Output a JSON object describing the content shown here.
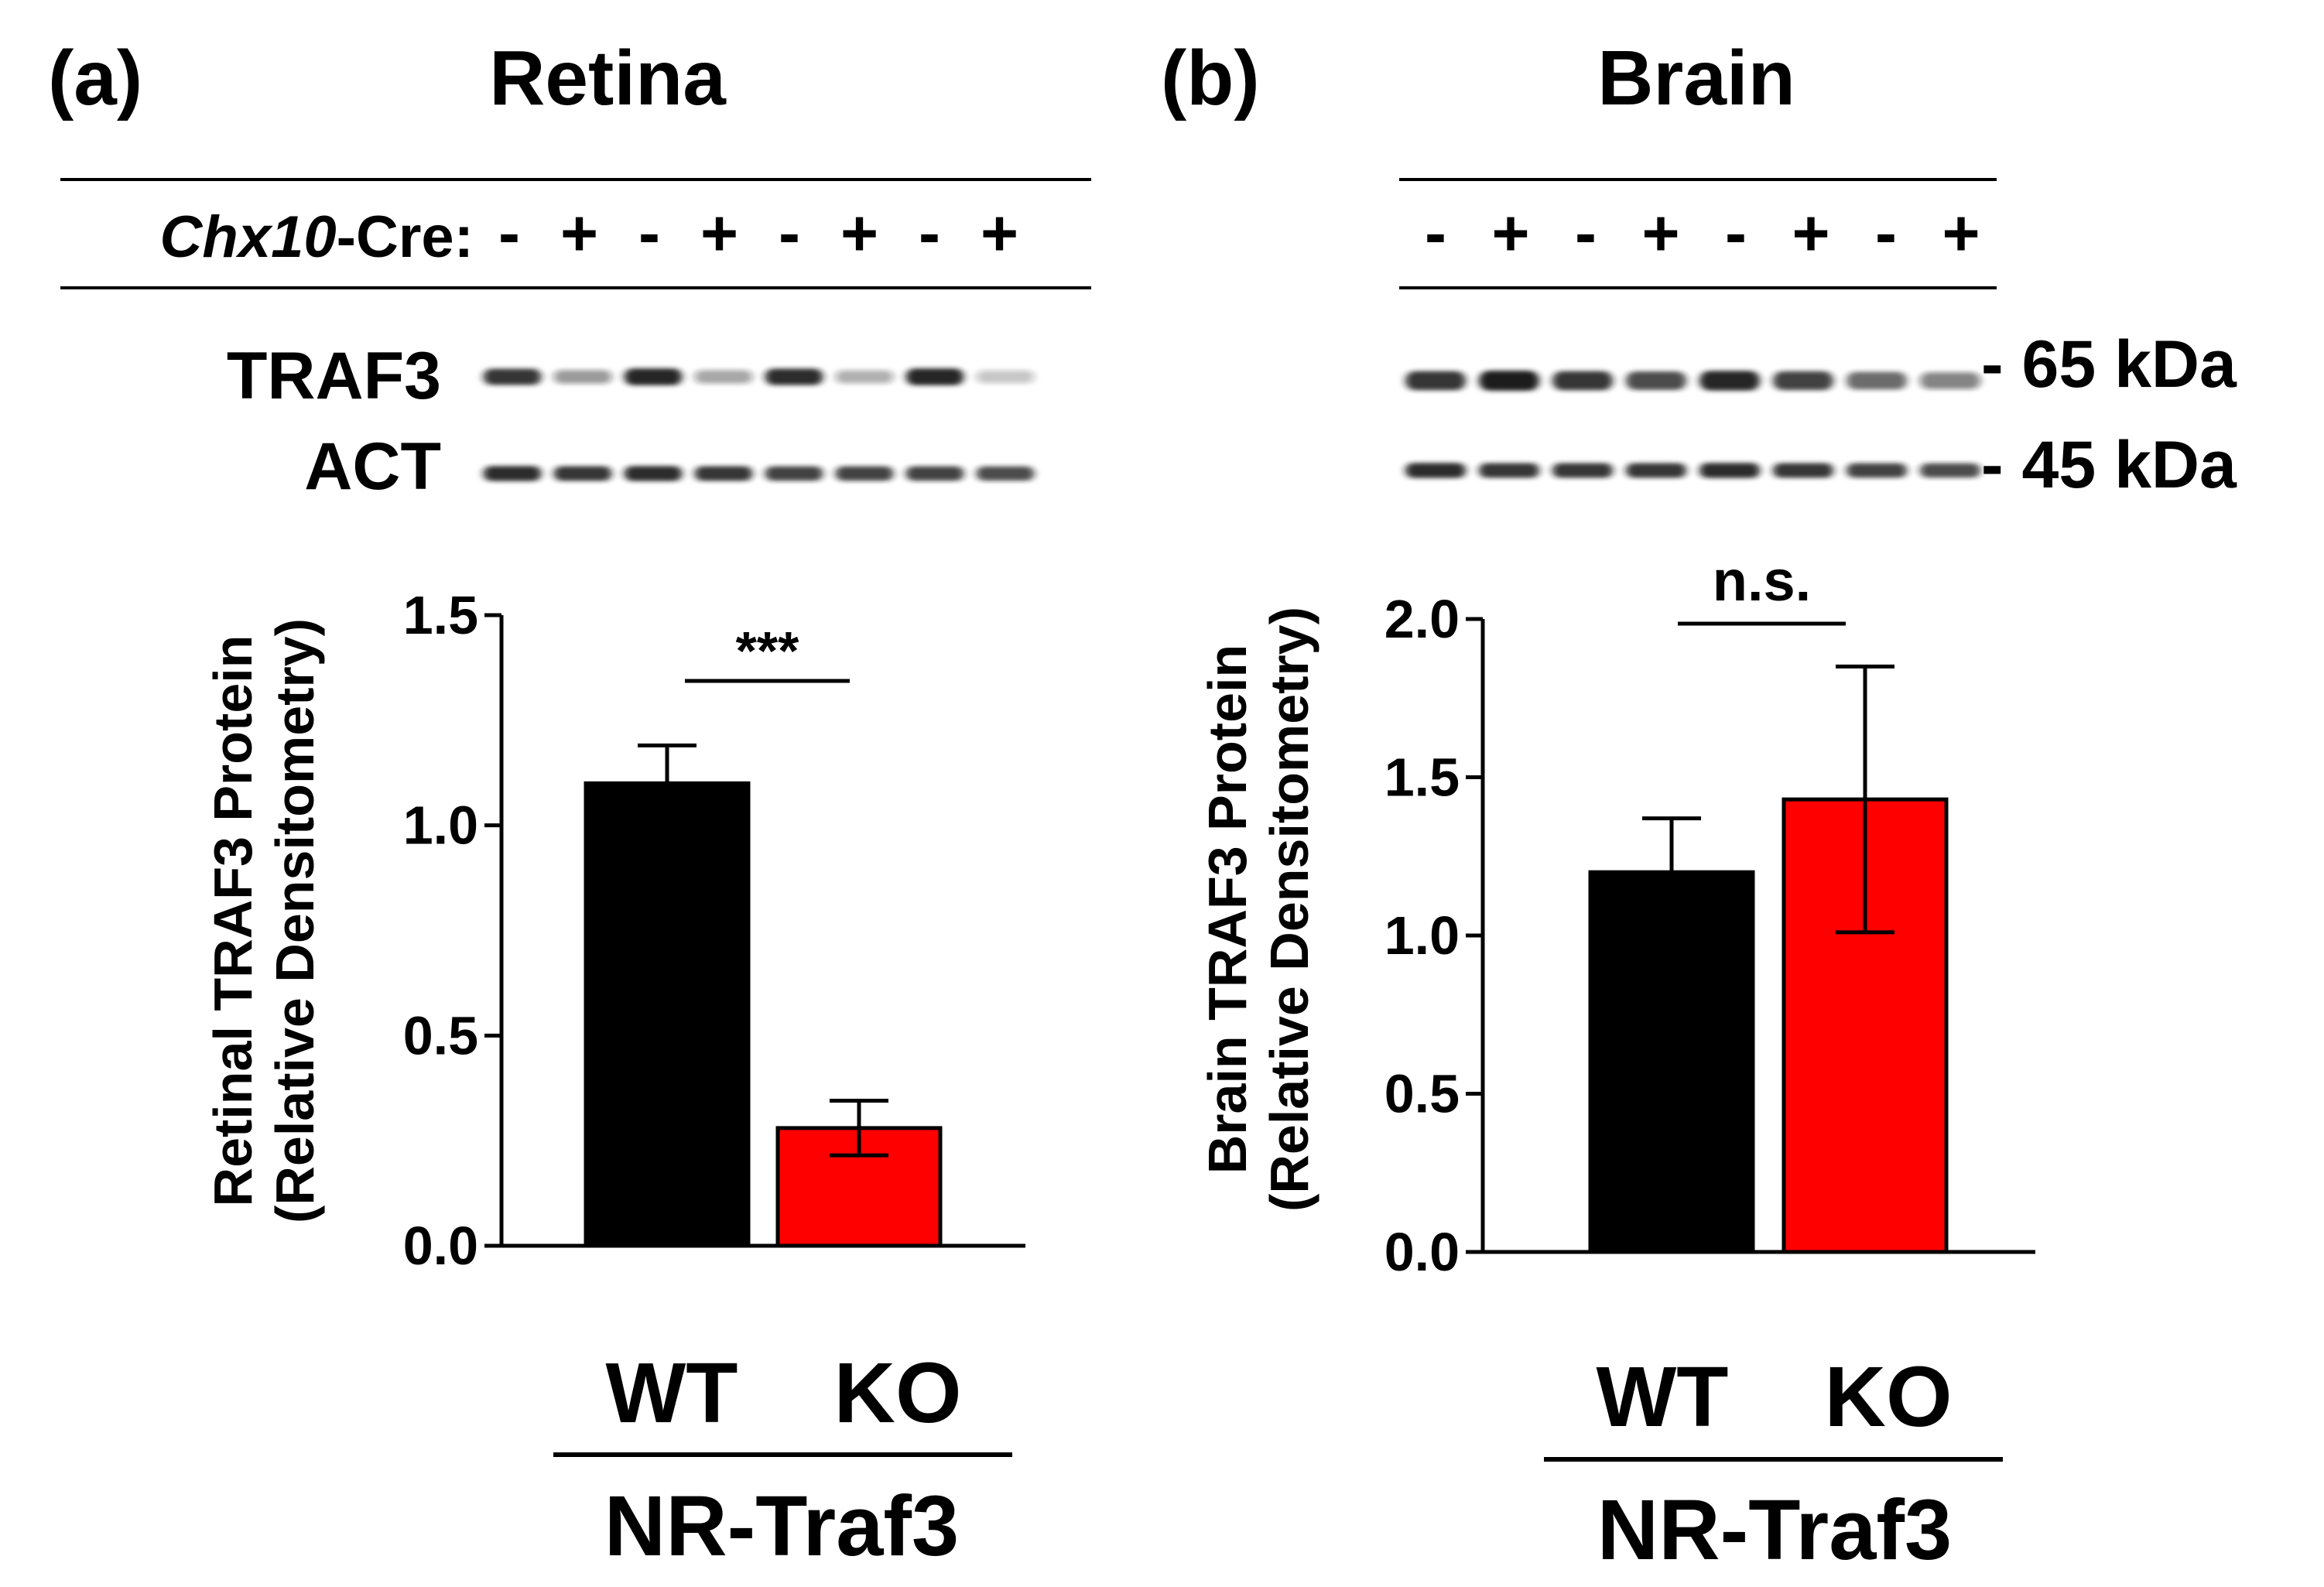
{
  "colors": {
    "wt": "#000000",
    "ko": "#ff0000",
    "axis": "#000000",
    "band": "#1a1a1a"
  },
  "panel_a": {
    "label": "(a)",
    "title": "Retina",
    "cre_label_italic": "Chx10",
    "cre_label_rest": "-Cre:",
    "lanes": [
      "-",
      "+",
      "-",
      "+",
      "-",
      "+",
      "-",
      "+"
    ],
    "blot_rows": [
      "TRAF3",
      "ACT"
    ],
    "traf3_intensity": [
      0.85,
      0.35,
      0.95,
      0.3,
      0.9,
      0.25,
      0.95,
      0.15
    ],
    "act_intensity": [
      0.9,
      0.85,
      0.9,
      0.85,
      0.8,
      0.8,
      0.8,
      0.75
    ],
    "significance": "***",
    "group_label": "NR-Traf3"
  },
  "panel_b": {
    "label": "(b)",
    "title": "Brain",
    "lanes": [
      "-",
      "+",
      "-",
      "+",
      "-",
      "+",
      "-",
      "+"
    ],
    "traf3_intensity": [
      0.85,
      1.0,
      0.85,
      0.75,
      0.95,
      0.8,
      0.6,
      0.45
    ],
    "act_intensity": [
      0.9,
      0.85,
      0.85,
      0.85,
      0.9,
      0.85,
      0.8,
      0.75
    ],
    "mw_markers": [
      "- 65 kDa",
      "- 45 kDa"
    ],
    "significance": "n.s.",
    "group_label": "NR-Traf3"
  },
  "chart_data": [
    {
      "type": "bar",
      "title": "Retina",
      "categories": [
        "WT",
        "KO"
      ],
      "values": [
        1.1,
        0.28
      ],
      "errors": [
        0.09,
        0.065
      ],
      "ylabel": "Retinal TRAF3 Protein",
      "ylabel2": "(Relative Densitometry)",
      "ylim": [
        0,
        1.5
      ],
      "yticks": [
        "0.0",
        "0.5",
        "1.0",
        "1.5"
      ],
      "xgroup": "NR-Traf3"
    },
    {
      "type": "bar",
      "title": "Brain",
      "categories": [
        "WT",
        "KO"
      ],
      "values": [
        1.2,
        1.43
      ],
      "errors": [
        0.17,
        0.42
      ],
      "ylabel": "Brain TRAF3 Protein",
      "ylabel2": "(Relative Densitometry)",
      "ylim": [
        0,
        2.0
      ],
      "yticks": [
        "0.0",
        "0.5",
        "1.0",
        "1.5",
        "2.0"
      ],
      "xgroup": "NR-Traf3"
    }
  ]
}
